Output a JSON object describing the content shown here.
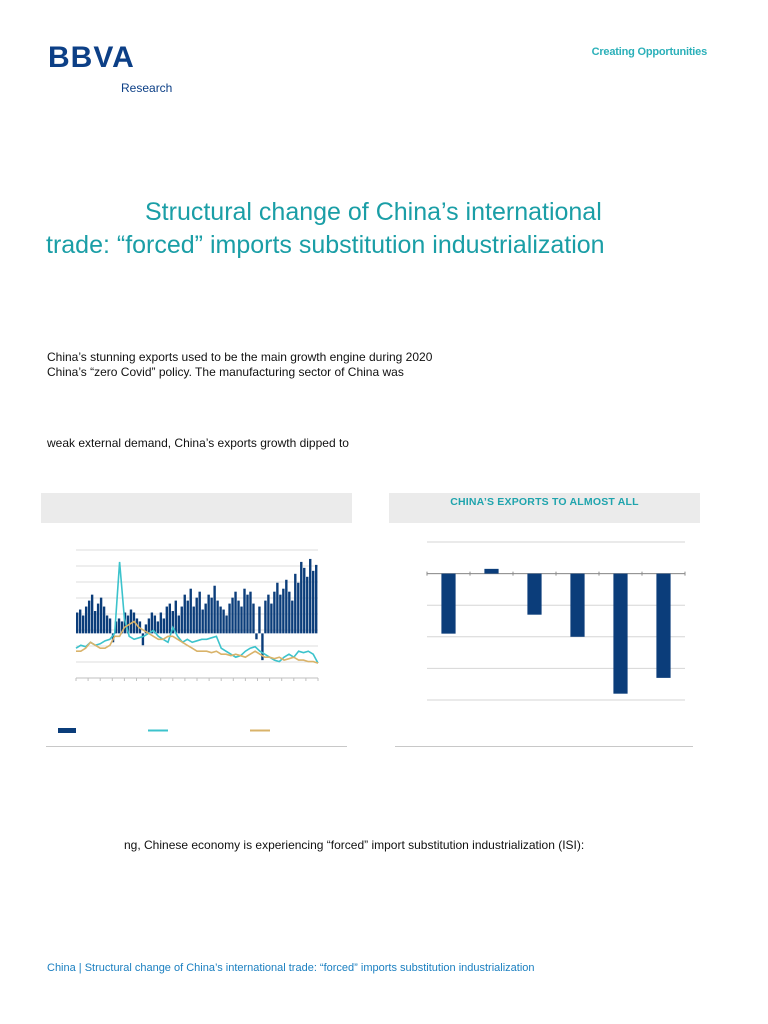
{
  "header": {
    "logo": "BBVA",
    "logo_sub": "Research",
    "tagline": "Creating Opportunities"
  },
  "title": {
    "line1": "Structural change of China’s international",
    "line2": "trade: “forced” imports substitution industrialization"
  },
  "body": {
    "p1_line1": "China’s stunning exports used to be the main growth engine during 2020",
    "p1_line2": "China’s “zero Covid” policy. The manufacturing sector of China was",
    "p2_line1": "weak external demand, China’s exports growth dipped to",
    "p3_line1": "ng, Chinese economy is experiencing “forced” import substitution industrialization (ISI):"
  },
  "chart_left": {
    "title": ""
  },
  "chart_right": {
    "title": "CHINA’S EXPORTS TO ALMOST ALL"
  },
  "footer": {
    "text": "China | Structural change of China’s international trade: “forced” imports substitution industrialization"
  },
  "colors": {
    "brand_navy": "#0c3f86",
    "teal": "#1a9ea6",
    "bar_navy": "#0b3d7a",
    "line_teal": "#3cc3cc",
    "line_gold": "#d9b36a"
  },
  "chart_data": [
    {
      "type": "line",
      "title": "",
      "grid": true,
      "series": [
        {
          "type": "bar",
          "color": "#0b3d7a",
          "values": [
            14,
            16,
            12,
            18,
            22,
            26,
            15,
            20,
            24,
            18,
            12,
            10,
            -6,
            8,
            10,
            8,
            14,
            12,
            16,
            14,
            10,
            8,
            -8,
            6,
            10,
            14,
            12,
            8,
            14,
            10,
            18,
            20,
            15,
            22,
            12,
            18,
            26,
            22,
            30,
            18,
            24,
            28,
            16,
            20,
            26,
            24,
            32,
            22,
            18,
            16,
            12,
            20,
            24,
            28,
            22,
            18,
            30,
            26,
            28,
            20,
            -4,
            18,
            -18,
            22,
            26,
            20,
            28,
            34,
            26,
            30,
            36,
            28,
            22,
            40,
            34,
            48,
            44,
            38,
            50,
            42,
            46
          ]
        },
        {
          "type": "line",
          "color": "#3cc3cc",
          "values": [
            -10,
            -8,
            -9,
            -6,
            -8,
            -7,
            -5,
            -4,
            0,
            48,
            10,
            -2,
            -4,
            -3,
            -2,
            0,
            2,
            -2,
            -4,
            -6,
            4,
            -2,
            -6,
            -4,
            -6,
            -5,
            -4,
            -4,
            -3,
            -2,
            -10,
            -12,
            -14,
            -16,
            -15,
            -12,
            -10,
            -9,
            -12,
            -14,
            -16,
            -18,
            -19,
            -16,
            -14,
            -16,
            -12,
            -13,
            -12,
            -14,
            -20
          ]
        },
        {
          "type": "line",
          "color": "#d9b36a",
          "values": [
            -12,
            -12,
            -10,
            -6,
            -8,
            -10,
            -10,
            -8,
            -2,
            -2,
            4,
            6,
            8,
            4,
            2,
            0,
            -2,
            -4,
            -4,
            -2,
            -2,
            -4,
            -6,
            -8,
            -10,
            -12,
            -12,
            -12,
            -13,
            -12,
            -14,
            -14,
            -15,
            -14,
            -15,
            -16,
            -14,
            -12,
            -14,
            -16,
            -16,
            -17,
            -16,
            -18,
            -17,
            -16,
            -18,
            -18,
            -19,
            -19,
            -20
          ]
        }
      ]
    },
    {
      "type": "bar",
      "title": "CHINA’S EXPORTS TO ALMOST ALL",
      "grid": true,
      "categories": [
        "",
        "",
        "",
        "",
        "",
        ""
      ],
      "values": [
        -19,
        1.5,
        -13,
        -20,
        -38,
        -33
      ],
      "ylim": [
        -40,
        10
      ],
      "color": "#0b3d7a"
    }
  ]
}
